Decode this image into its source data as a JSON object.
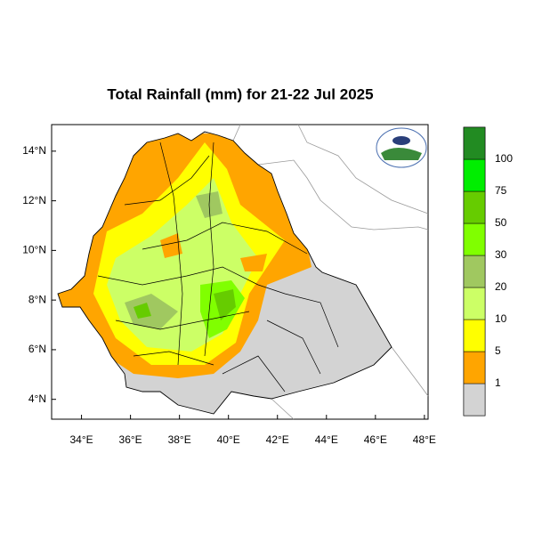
{
  "map": {
    "title": "Total Rainfall (mm) for 21-22 Jul 2025",
    "xlim": [
      32.78,
      48.15
    ],
    "ylim": [
      3.2,
      15.07
    ],
    "xticks": [
      {
        "value": 34,
        "label": "34°E"
      },
      {
        "value": 36,
        "label": "36°E"
      },
      {
        "value": 38,
        "label": "38°E"
      },
      {
        "value": 40,
        "label": "40°E"
      },
      {
        "value": 42,
        "label": "42°E"
      },
      {
        "value": 44,
        "label": "44°E"
      },
      {
        "value": 46,
        "label": "46°E"
      },
      {
        "value": 48,
        "label": "48°E"
      }
    ],
    "yticks": [
      {
        "value": 4,
        "label": "4°N"
      },
      {
        "value": 6,
        "label": "6°N"
      },
      {
        "value": 8,
        "label": "8°N"
      },
      {
        "value": 10,
        "label": "10°N"
      },
      {
        "value": 12,
        "label": "12°N"
      },
      {
        "value": 14,
        "label": "14°N"
      }
    ],
    "colorbar": {
      "levels": [
        1,
        5,
        10,
        20,
        30,
        50,
        75,
        100
      ],
      "colors": [
        "#d3d3d3",
        "#ffa500",
        "#ffff00",
        "#ccff66",
        "#a0c860",
        "#80ff00",
        "#66cc00",
        "#00ee00",
        "#228b22"
      ]
    }
  }
}
